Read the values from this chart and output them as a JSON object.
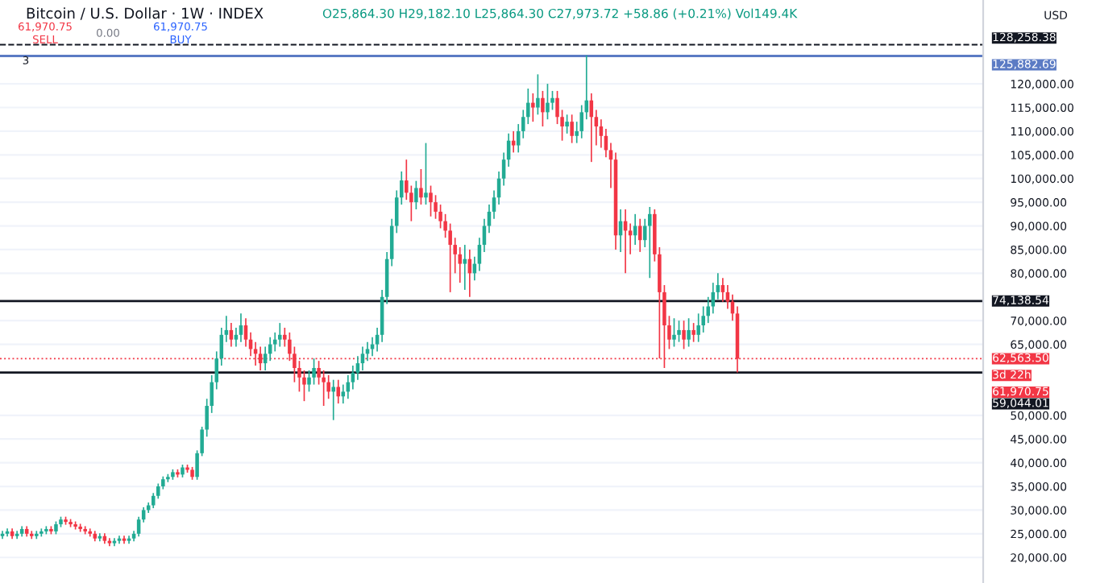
{
  "chart_data": {
    "type": "candlestick",
    "title": "Bitcoin / U.S. Dollar · 1W · INDEX",
    "subtitle": "O25,864.30 H29,182.10 L25,864.30 C27,973.72 +58.86 (+0.21%) Vol149.4K",
    "ylabel": "USD",
    "categories": [
      null,
      null,
      null,
      null,
      null,
      null,
      null,
      null,
      null,
      null,
      null,
      null,
      null,
      null,
      null,
      null,
      null,
      null,
      null,
      null,
      null,
      null,
      null,
      null,
      null,
      null,
      null,
      null,
      null,
      null,
      null,
      null,
      null,
      null,
      null,
      null,
      null,
      null,
      null,
      null,
      null,
      null,
      null,
      null,
      null,
      null,
      null,
      null,
      null,
      null,
      null,
      null,
      null,
      null,
      null,
      null,
      null,
      null,
      null,
      null,
      null,
      null,
      null,
      null,
      null,
      null,
      null,
      null,
      null,
      null,
      null,
      null,
      null,
      null,
      null,
      null,
      null,
      null,
      null,
      null,
      null,
      null,
      null,
      null,
      null,
      null,
      null,
      null,
      null,
      null,
      null,
      null,
      null,
      null,
      null,
      null,
      null,
      null,
      null,
      null,
      null,
      null,
      null,
      null,
      null,
      null,
      null,
      null,
      null,
      null,
      null,
      null,
      null,
      null,
      null,
      null,
      null,
      null,
      null,
      null,
      null,
      null,
      null,
      null,
      null,
      null,
      null,
      null,
      null,
      null,
      null,
      null,
      null,
      null,
      null,
      null,
      null,
      null,
      null,
      null,
      null,
      null,
      null,
      null,
      null,
      null,
      null,
      null,
      null,
      null,
      null,
      null,
      null,
      null,
      null,
      null,
      null,
      null,
      null,
      null,
      null,
      null,
      null,
      null,
      null,
      null,
      null,
      null,
      null,
      null,
      null,
      null,
      null,
      null,
      null,
      null,
      null,
      null,
      null,
      null,
      null,
      null,
      null,
      null,
      null,
      null,
      null,
      null,
      null,
      null,
      null,
      null,
      null,
      null,
      null,
      null,
      null,
      null,
      null,
      null,
      null,
      null
    ],
    "ohlc": [
      [
        24500,
        25600,
        23900,
        25000
      ],
      [
        25000,
        26100,
        24400,
        25500
      ],
      [
        25500,
        26100,
        23900,
        24500
      ],
      [
        24500,
        25600,
        23900,
        25000
      ],
      [
        25000,
        26600,
        24400,
        26000
      ],
      [
        26000,
        26600,
        24400,
        25000
      ],
      [
        25000,
        25600,
        23900,
        24500
      ],
      [
        24500,
        25600,
        23900,
        25000
      ],
      [
        25000,
        26100,
        24400,
        25500
      ],
      [
        25500,
        26600,
        24900,
        26000
      ],
      [
        26000,
        26600,
        24900,
        25500
      ],
      [
        25500,
        27600,
        24900,
        27000
      ],
      [
        27000,
        28600,
        26400,
        28000
      ],
      [
        28000,
        28600,
        26900,
        27500
      ],
      [
        27500,
        28100,
        26400,
        27000
      ],
      [
        27000,
        27600,
        25900,
        26500
      ],
      [
        26500,
        27100,
        25400,
        26000
      ],
      [
        26000,
        26600,
        24900,
        25500
      ],
      [
        25500,
        26100,
        24400,
        25000
      ],
      [
        25000,
        25600,
        23400,
        24000
      ],
      [
        24000,
        25100,
        23400,
        24500
      ],
      [
        24500,
        25100,
        22900,
        23500
      ],
      [
        23500,
        24100,
        22400,
        23000
      ],
      [
        23000,
        24100,
        22400,
        23500
      ],
      [
        23500,
        24600,
        22900,
        24000
      ],
      [
        24000,
        24600,
        22900,
        23500
      ],
      [
        23500,
        24600,
        22900,
        24000
      ],
      [
        24000,
        25600,
        23400,
        25000
      ],
      [
        25000,
        28600,
        24400,
        28000
      ],
      [
        28000,
        30600,
        27400,
        30000
      ],
      [
        30000,
        31600,
        29400,
        31000
      ],
      [
        31000,
        33600,
        30400,
        33000
      ],
      [
        33000,
        35600,
        32400,
        35000
      ],
      [
        35000,
        37100,
        34400,
        36500
      ],
      [
        36500,
        37600,
        35900,
        37000
      ],
      [
        37000,
        38600,
        36400,
        38000
      ],
      [
        38000,
        38600,
        36900,
        37500
      ],
      [
        37500,
        39600,
        36900,
        39000
      ],
      [
        39000,
        39600,
        37900,
        38500
      ],
      [
        38500,
        39100,
        36400,
        37000
      ],
      [
        37000,
        42600,
        36400,
        42000
      ],
      [
        42000,
        47600,
        41400,
        47000
      ],
      [
        47000,
        53500,
        45500,
        52000
      ],
      [
        52000,
        58500,
        50500,
        57000
      ],
      [
        57000,
        63500,
        55500,
        62000
      ],
      [
        62000,
        68500,
        60500,
        67000
      ],
      [
        67000,
        71000,
        65500,
        68000
      ],
      [
        68000,
        69500,
        64500,
        66000
      ],
      [
        66000,
        68500,
        64500,
        67000
      ],
      [
        67000,
        71500,
        65500,
        69000
      ],
      [
        69000,
        70500,
        64500,
        66000
      ],
      [
        66000,
        67500,
        62500,
        64000
      ],
      [
        64000,
        65500,
        60500,
        63000
      ],
      [
        63000,
        64500,
        59500,
        61000
      ],
      [
        61000,
        64500,
        59500,
        63000
      ],
      [
        63000,
        66500,
        61500,
        65000
      ],
      [
        65000,
        67500,
        63500,
        66000
      ],
      [
        66000,
        69500,
        64500,
        67000
      ],
      [
        67000,
        68500,
        64500,
        66000
      ],
      [
        66000,
        67500,
        61500,
        63000
      ],
      [
        63000,
        64500,
        57000,
        60000
      ],
      [
        60000,
        61500,
        55000,
        58000
      ],
      [
        58000,
        59500,
        53000,
        56500
      ],
      [
        56500,
        59500,
        55000,
        58000
      ],
      [
        58000,
        62000,
        56500,
        60000
      ],
      [
        60000,
        61500,
        56500,
        58000
      ],
      [
        58000,
        59500,
        52000,
        57000
      ],
      [
        57000,
        58500,
        53500,
        55000
      ],
      [
        55000,
        57500,
        49000,
        56000
      ],
      [
        56000,
        57500,
        52500,
        54000
      ],
      [
        54000,
        56500,
        52500,
        55000
      ],
      [
        55000,
        58500,
        53500,
        57000
      ],
      [
        57000,
        60500,
        55500,
        59000
      ],
      [
        59000,
        62500,
        57500,
        61000
      ],
      [
        61000,
        64500,
        59500,
        63000
      ],
      [
        63000,
        65500,
        61500,
        64000
      ],
      [
        64000,
        66500,
        62500,
        65000
      ],
      [
        65000,
        68500,
        63500,
        67000
      ],
      [
        67000,
        76500,
        65500,
        75000
      ],
      [
        75000,
        84500,
        73500,
        83000
      ],
      [
        83000,
        91500,
        81500,
        90000
      ],
      [
        90000,
        97500,
        88500,
        96000
      ],
      [
        96000,
        101500,
        94500,
        99600
      ],
      [
        99600,
        104000,
        95500,
        97000
      ],
      [
        97000,
        98500,
        91000,
        95000
      ],
      [
        95000,
        99500,
        93500,
        98000
      ],
      [
        98000,
        102000,
        94500,
        96000
      ],
      [
        96000,
        107500,
        94500,
        97000
      ],
      [
        97000,
        98500,
        92000,
        95000
      ],
      [
        95000,
        96500,
        91500,
        93000
      ],
      [
        93000,
        94500,
        89500,
        91000
      ],
      [
        91000,
        92500,
        87500,
        89000
      ],
      [
        89000,
        90500,
        76000,
        86000
      ],
      [
        86000,
        87500,
        80000,
        84000
      ],
      [
        84000,
        85500,
        78000,
        82000
      ],
      [
        82000,
        86000,
        76500,
        83000
      ],
      [
        83000,
        85000,
        75000,
        80000
      ],
      [
        80000,
        83500,
        78500,
        82000
      ],
      [
        82000,
        87500,
        80500,
        86000
      ],
      [
        86000,
        91500,
        84500,
        90000
      ],
      [
        90000,
        94500,
        88500,
        93000
      ],
      [
        93000,
        97500,
        91500,
        96000
      ],
      [
        96000,
        101500,
        94500,
        100000
      ],
      [
        100000,
        105500,
        98500,
        104000
      ],
      [
        104000,
        109500,
        102500,
        108000
      ],
      [
        108000,
        110000,
        105500,
        107000
      ],
      [
        107000,
        111500,
        105500,
        110000
      ],
      [
        110000,
        114500,
        108500,
        113000
      ],
      [
        113000,
        119000,
        111500,
        116000
      ],
      [
        116000,
        118000,
        112000,
        115000
      ],
      [
        115000,
        122000,
        113500,
        117000
      ],
      [
        117000,
        118500,
        111000,
        114000
      ],
      [
        114000,
        120000,
        112500,
        116000
      ],
      [
        116000,
        118500,
        114500,
        117000
      ],
      [
        117000,
        118500,
        111500,
        113000
      ],
      [
        113000,
        114500,
        108000,
        111000
      ],
      [
        111000,
        113500,
        109500,
        112000
      ],
      [
        112000,
        113500,
        107500,
        109000
      ],
      [
        109000,
        112000,
        107500,
        110000
      ],
      [
        110000,
        115500,
        108500,
        114000
      ],
      [
        114000,
        126000,
        112500,
        116500
      ],
      [
        116500,
        118000,
        103500,
        113000
      ],
      [
        113000,
        114500,
        107000,
        111000
      ],
      [
        111000,
        112500,
        106500,
        109000
      ],
      [
        109000,
        110500,
        104500,
        106000
      ],
      [
        106000,
        107500,
        98000,
        104000
      ],
      [
        104000,
        105500,
        85000,
        88000
      ],
      [
        88000,
        93500,
        84500,
        91000
      ],
      [
        91000,
        93500,
        80000,
        89000
      ],
      [
        89000,
        90500,
        84000,
        88000
      ],
      [
        88000,
        92500,
        86000,
        90000
      ],
      [
        90000,
        91500,
        84500,
        87000
      ],
      [
        87000,
        91500,
        85500,
        90000
      ],
      [
        90000,
        94000,
        79000,
        92500
      ],
      [
        92500,
        93500,
        82500,
        84000
      ],
      [
        84000,
        85500,
        62000,
        76000
      ],
      [
        76000,
        77500,
        60000,
        69000
      ],
      [
        69000,
        71000,
        64000,
        66000
      ],
      [
        66000,
        70500,
        64500,
        67000
      ],
      [
        67000,
        70000,
        65500,
        68000
      ],
      [
        68000,
        70000,
        64000,
        66000
      ],
      [
        66000,
        70500,
        64500,
        68000
      ],
      [
        68000,
        69500,
        65500,
        67000
      ],
      [
        67000,
        71500,
        65500,
        69000
      ],
      [
        69000,
        73000,
        67500,
        71000
      ],
      [
        71000,
        75000,
        69500,
        73000
      ],
      [
        73000,
        78000,
        71500,
        76000
      ],
      [
        76000,
        80000,
        74500,
        77500
      ],
      [
        77500,
        79000,
        74000,
        76000
      ],
      [
        76000,
        77500,
        72500,
        74000
      ],
      [
        74000,
        75500,
        70000,
        71500
      ],
      [
        71500,
        73000,
        59044.01,
        61970.75
      ],
      null,
      null,
      null,
      null,
      null,
      null,
      null,
      null,
      null,
      null,
      null,
      null,
      null,
      null,
      null,
      null,
      null,
      null,
      null,
      null,
      null,
      null,
      null,
      null,
      null,
      null,
      null,
      null,
      null,
      null,
      null,
      null,
      null,
      null,
      null,
      null,
      null,
      null,
      null,
      null,
      null,
      null,
      null,
      null,
      null,
      null,
      null,
      null,
      null,
      null
    ],
    "ylim": [
      14600,
      137700
    ],
    "yticks": [
      {
        "value": 20000,
        "label": "20,000.00"
      },
      {
        "value": 25000,
        "label": "25,000.00"
      },
      {
        "value": 30000,
        "label": "30,000.00"
      },
      {
        "value": 35000,
        "label": "35,000.00"
      },
      {
        "value": 40000,
        "label": "40,000.00"
      },
      {
        "value": 45000,
        "label": "45,000.00"
      },
      {
        "value": 50000,
        "label": "50,000.00"
      },
      {
        "value": 65000,
        "label": "65,000.00"
      },
      {
        "value": 70000,
        "label": "70,000.00"
      },
      {
        "value": 80000,
        "label": "80,000.00"
      },
      {
        "value": 85000,
        "label": "85,000.00"
      },
      {
        "value": 90000,
        "label": "90,000.00"
      },
      {
        "value": 95000,
        "label": "95,000.00"
      },
      {
        "value": 100000,
        "label": "100,000.00"
      },
      {
        "value": 105000,
        "label": "105,000.00"
      },
      {
        "value": 110000,
        "label": "110,000.00"
      },
      {
        "value": 115000,
        "label": "115,000.00"
      },
      {
        "value": 120000,
        "label": "120,000.00"
      }
    ],
    "ref_lines": [
      {
        "axis": "y",
        "value": 128258.38,
        "label": "128,258.38",
        "color": "#131722",
        "line_style": "dashed"
      },
      {
        "axis": "y",
        "value": 125882.69,
        "label": "125,882.69",
        "color": "#5b7bc4",
        "line_style": "solid"
      },
      {
        "axis": "y",
        "value": 74138.54,
        "label": "74,138.54",
        "color": "#131722",
        "line_style": "solid"
      },
      {
        "axis": "y",
        "value": 61970.75,
        "label": "61,970.75",
        "color": "#f23645",
        "line_style": "dotted"
      },
      {
        "axis": "y",
        "value": 59044.01,
        "label": "59,044.01",
        "color": "#131722",
        "line_style": "solid"
      }
    ],
    "annotations": [
      "61,970.75",
      "SELL",
      "0.00",
      "61,970.75",
      "BUY",
      "3",
      "62,563.50",
      "3d 22h"
    ],
    "grid": "y"
  }
}
